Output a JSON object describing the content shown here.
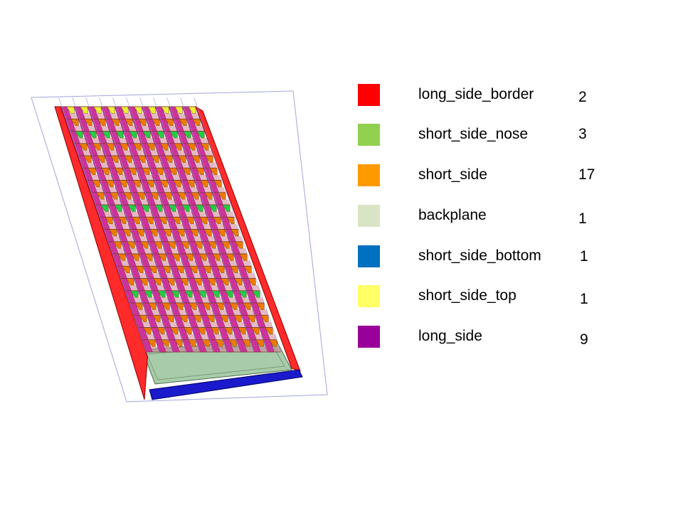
{
  "legend": [
    {
      "label": "long_side_border",
      "count": "2",
      "color": "#ff0000"
    },
    {
      "label": "short_side_nose",
      "count": "3",
      "color": "#92d050"
    },
    {
      "label": "short_side",
      "count": "17",
      "color": "#ff9900"
    },
    {
      "label": "backplane",
      "count": "1",
      "color": "#d9e4c4"
    },
    {
      "label": "short_side_bottom",
      "count": "1",
      "color": "#0070c0"
    },
    {
      "label": "short_side_top",
      "count": "1",
      "color": "#ffff66"
    },
    {
      "label": "long_side",
      "count": "9",
      "color": "#990099"
    }
  ],
  "model_colors": {
    "border": "#ff2a2a",
    "nose": "#22cc44",
    "short_side": "#ee7a00",
    "long_side": "#cc3399",
    "top": "#eeee33",
    "bottom": "#1a1acc",
    "backplane": "#a8ccaa",
    "frame": "#8a8fd0"
  }
}
